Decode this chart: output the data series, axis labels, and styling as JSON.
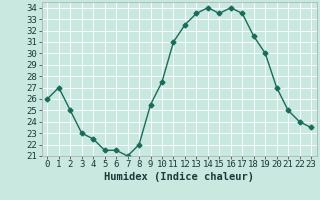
{
  "x": [
    0,
    1,
    2,
    3,
    4,
    5,
    6,
    7,
    8,
    9,
    10,
    11,
    12,
    13,
    14,
    15,
    16,
    17,
    18,
    19,
    20,
    21,
    22,
    23
  ],
  "y": [
    26,
    27,
    25,
    23,
    22.5,
    21.5,
    21.5,
    21,
    22,
    25.5,
    27.5,
    31,
    32.5,
    33.5,
    34,
    33.5,
    34,
    33.5,
    31.5,
    30,
    27,
    25,
    24,
    23.5
  ],
  "line_color": "#1a6b5a",
  "marker": "D",
  "marker_size": 2.5,
  "background_color": "#c8e8e0",
  "grid_color": "#ffffff",
  "xlabel": "Humidex (Indice chaleur)",
  "xlabel_fontsize": 7.5,
  "ylim": [
    21,
    34.5
  ],
  "xlim": [
    -0.5,
    23.5
  ],
  "yticks": [
    21,
    22,
    23,
    24,
    25,
    26,
    27,
    28,
    29,
    30,
    31,
    32,
    33,
    34
  ],
  "xticks": [
    0,
    1,
    2,
    3,
    4,
    5,
    6,
    7,
    8,
    9,
    10,
    11,
    12,
    13,
    14,
    15,
    16,
    17,
    18,
    19,
    20,
    21,
    22,
    23
  ],
  "tick_fontsize": 6.5,
  "line_width": 1.0
}
